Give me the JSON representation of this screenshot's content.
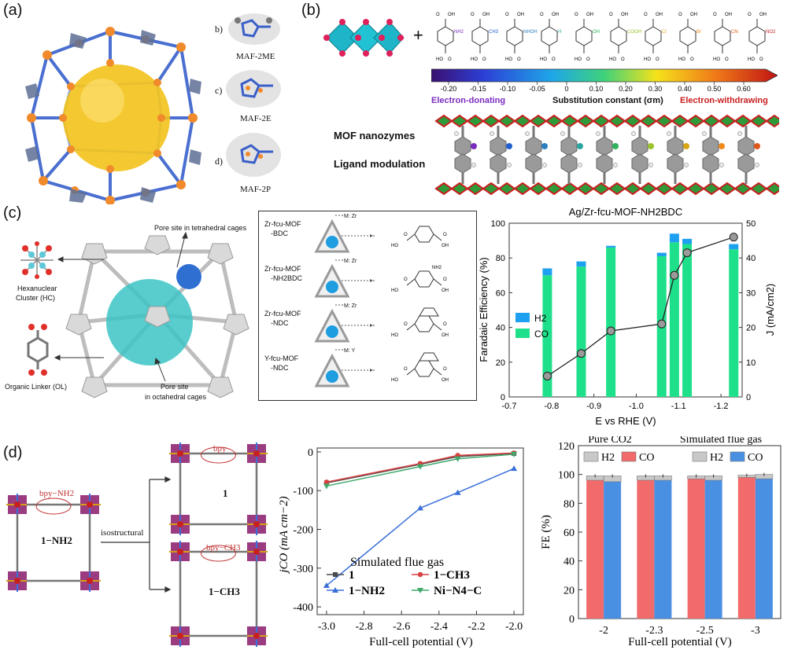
{
  "panels": {
    "a": {
      "label": "(a)",
      "mini_letters": [
        "b)",
        "c)",
        "d)"
      ],
      "mini_names": [
        "MAF-2ME",
        "MAF-2E",
        "MAF-2P"
      ]
    },
    "b": {
      "label": "(b)",
      "plus": "+",
      "substituents": [
        "NH2",
        "CH3",
        "NHOH",
        "H",
        "OH",
        "COOH",
        "Cl",
        "Br",
        "CN",
        "NO2"
      ],
      "substituent_colors": [
        "#7b2cbf",
        "#1f5fd0",
        "#2a7fc0",
        "#2aa6a0",
        "#2fb35a",
        "#9ac42a",
        "#d9a514",
        "#f08a1c",
        "#e0561a",
        "#c81e1e"
      ],
      "colorbar_ticks": [
        "-0.20",
        "-0.15",
        "-0.10",
        "-0.05",
        "0",
        "0.10",
        "0.20",
        "0.30",
        "0.40",
        "0.50",
        "0.60"
      ],
      "left_label": "Electron-donating",
      "center_label": "Substitution constant (σm)",
      "right_label": "Electron-withdrawing",
      "text1": "MOF nanozymes",
      "text2": "Ligand modulation"
    },
    "c": {
      "label": "(c)",
      "pore_tetra": "Pore site in tetrahedral cages",
      "pore_octa_1": "Pore site",
      "pore_octa_2": "in octahedral cages",
      "hc_1": "Hexanuclear",
      "hc_2": "Cluster (HC)",
      "ol": "Organic Linker (OL)",
      "mofs": [
        {
          "name1": "Zr-fcu-MOF",
          "name2": "-BDC",
          "metal": "M: Zr",
          "sub": ""
        },
        {
          "name1": "Zr-fcu-MOF",
          "name2": "-NH2BDC",
          "metal": "M: Zr",
          "sub": "NH2"
        },
        {
          "name1": "Zr-fcu-MOF",
          "name2": "-NDC",
          "metal": "M: Zr",
          "sub": ""
        },
        {
          "name1": "Y-fcu-MOF",
          "name2": "-NDC",
          "metal": "M: Y",
          "sub": ""
        }
      ]
    },
    "d": {
      "label": "(d)",
      "bpy_nh2": "bpy−NH2",
      "one_nh2": "1−NH2",
      "isostructural": "isostructural",
      "bpy": "bpy",
      "one": "1",
      "bpy_ch3": "bpy−CH3",
      "one_ch3": "1−CH3"
    }
  },
  "chart_data": [
    {
      "type": "bar",
      "title": "Ag/Zr-fcu-MOF-NH2BDC",
      "xlabel": "E vs RHE (V)",
      "ylabel": "Faradaic Efficiency (%)",
      "y2label": "J (mA/cm2)",
      "xlim": [
        -0.7,
        -1.25
      ],
      "ylim": [
        0,
        100
      ],
      "y2lim": [
        0,
        50
      ],
      "xticks": [
        "-0.7",
        "-0.8",
        "-0.9",
        "-1.0",
        "-1.1",
        "-1.2"
      ],
      "yticks": [
        "0",
        "20",
        "40",
        "60",
        "80",
        "100"
      ],
      "y2ticks": [
        "0",
        "10",
        "20",
        "30",
        "40",
        "50"
      ],
      "x": [
        -0.79,
        -0.87,
        -0.94,
        -1.06,
        -1.09,
        -1.12,
        -1.23
      ],
      "series": [
        {
          "name": "CO",
          "values": [
            70,
            75,
            86,
            81,
            89,
            88,
            85
          ],
          "color": "#1fe08a"
        },
        {
          "name": "H2",
          "values": [
            4,
            3,
            1,
            2,
            5,
            3,
            3
          ],
          "color": "#1ea0f0"
        }
      ],
      "line": {
        "values": [
          6,
          12.5,
          19,
          21,
          35,
          41.5,
          46
        ]
      },
      "legend": "left"
    },
    {
      "type": "line",
      "title": "",
      "xlabel": "Full-cell potential (V)",
      "ylabel": "jCO (mA cm−2)",
      "xlim": [
        -3.05,
        -1.95
      ],
      "ylim": [
        -420,
        10
      ],
      "xticks": [
        "-3.0",
        "-2.8",
        "-2.6",
        "-2.4",
        "-2.2",
        "-2.0"
      ],
      "yticks": [
        "0",
        "-100",
        "-200",
        "-300",
        "-400"
      ],
      "legend_title": "Simulated flue gas",
      "x": [
        -3.0,
        -2.5,
        -2.3,
        -2.0
      ],
      "series": [
        {
          "name": "1",
          "values": [
            -80,
            -32,
            -12,
            -4
          ],
          "color": "#4a4a4a",
          "marker": "square"
        },
        {
          "name": "1−CH3",
          "values": [
            -78,
            -30,
            -9,
            -3
          ],
          "color": "#d94040",
          "marker": "circle"
        },
        {
          "name": "1−NH2",
          "values": [
            -345,
            -145,
            -105,
            -43
          ],
          "color": "#3a6fd8",
          "marker": "triangle"
        },
        {
          "name": "Ni−N4−C",
          "values": [
            -88,
            -38,
            -18,
            -6
          ],
          "color": "#3fa86a",
          "marker": "tri-down"
        }
      ]
    },
    {
      "type": "bar",
      "title": "",
      "xlabel": "Full-cell potential (V)",
      "ylabel": "FE (%)",
      "ylim": [
        0,
        120
      ],
      "yticks": [
        "0",
        "20",
        "40",
        "60",
        "80",
        "100",
        "120"
      ],
      "categories": [
        "-2",
        "-2.3",
        "-2.5",
        "-3"
      ],
      "groups": [
        "Pure CO2",
        "Simulated flue gas"
      ],
      "series": [
        {
          "name": "CO",
          "group": "Pure CO2",
          "values": [
            96,
            96,
            97,
            98
          ],
          "color": "#f26b6b"
        },
        {
          "name": "H2",
          "group": "Pure CO2",
          "values": [
            3,
            3,
            2,
            1.5
          ],
          "color": "#c8c8c8"
        },
        {
          "name": "CO",
          "group": "Simulated flue gas",
          "values": [
            95,
            96,
            96,
            97
          ],
          "color": "#4a90e2"
        },
        {
          "name": "H2",
          "group": "Simulated flue gas",
          "values": [
            4,
            3,
            3,
            3
          ],
          "color": "#c8c8c8"
        }
      ]
    }
  ]
}
